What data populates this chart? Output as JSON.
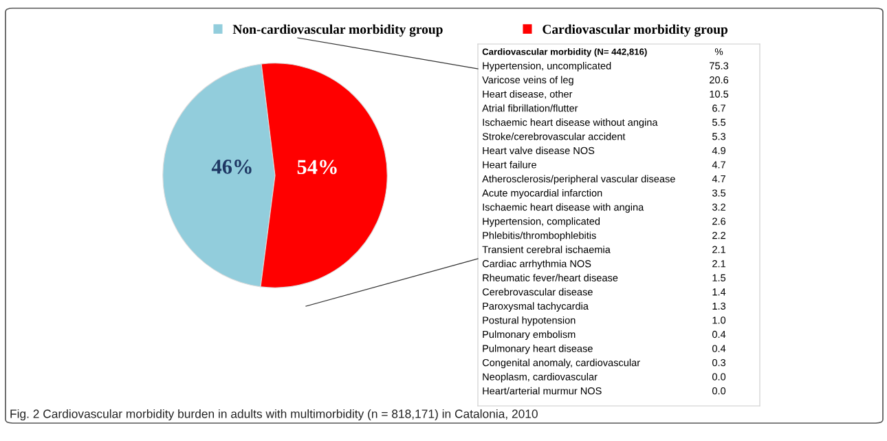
{
  "chart_data": [
    {
      "type": "pie",
      "categories": [
        "Non-cardiovascular morbidity group",
        "Cardiovascular morbidity group"
      ],
      "values": [
        46,
        54
      ],
      "colors": [
        "#92cddc",
        "#ff0000"
      ],
      "value_labels": [
        "46%",
        "54%"
      ],
      "legend": "top",
      "annotations": [
        "Fig. 2 Cardiovascular morbidity burden in adults with multimorbidity (n = 818,171) in Catalonia, 2010"
      ]
    },
    {
      "type": "other",
      "title": "Cardiovascular morbidity (N= 442,816)",
      "ylabel": "%",
      "data_labels": true,
      "value_labels": [
        "75.3",
        "20.6",
        "10.5",
        "6.7",
        "5.5",
        "5.3",
        "4.9",
        "4.7",
        "4.7",
        "3.5",
        "3.2",
        "2.6",
        "2.2",
        "2.1",
        "2.1",
        "1.5",
        "1.4",
        "1.3",
        "1.0",
        "0.4",
        "0.4",
        "0.3",
        "0.0",
        "0.0"
      ],
      "categories": [
        "Hypertension, uncomplicated",
        "Varicose veins of leg",
        "Heart disease, other",
        "Atrial fibrillation/flutter",
        "Ischaemic heart disease without angina",
        "Stroke/cerebrovascular accident",
        "Heart valve disease NOS",
        "Heart failure",
        "Atherosclerosis/peripheral vascular disease",
        "Acute myocardial infarction",
        "Ischaemic heart disease with angina",
        "Hypertension, complicated",
        "Phlebitis/thrombophlebitis",
        "Transient cerebral ischaemia",
        "Cardiac arrhythmia NOS",
        "Rheumatic fever/heart disease",
        "Cerebrovascular disease",
        "Paroxysmal tachycardia",
        "Postural hypotension",
        "Pulmonary embolism",
        "Pulmonary heart disease",
        "Congenital anomaly, cardiovascular",
        "Neoplasm, cardiovascular",
        "Heart/arterial murmur NOS"
      ],
      "values": [
        75.3,
        20.6,
        10.5,
        6.7,
        5.5,
        5.3,
        4.9,
        4.7,
        4.7,
        3.5,
        3.2,
        2.6,
        2.2,
        2.1,
        2.1,
        1.5,
        1.4,
        1.3,
        1.0,
        0.4,
        0.4,
        0.3,
        0.0,
        0.0
      ]
    }
  ]
}
